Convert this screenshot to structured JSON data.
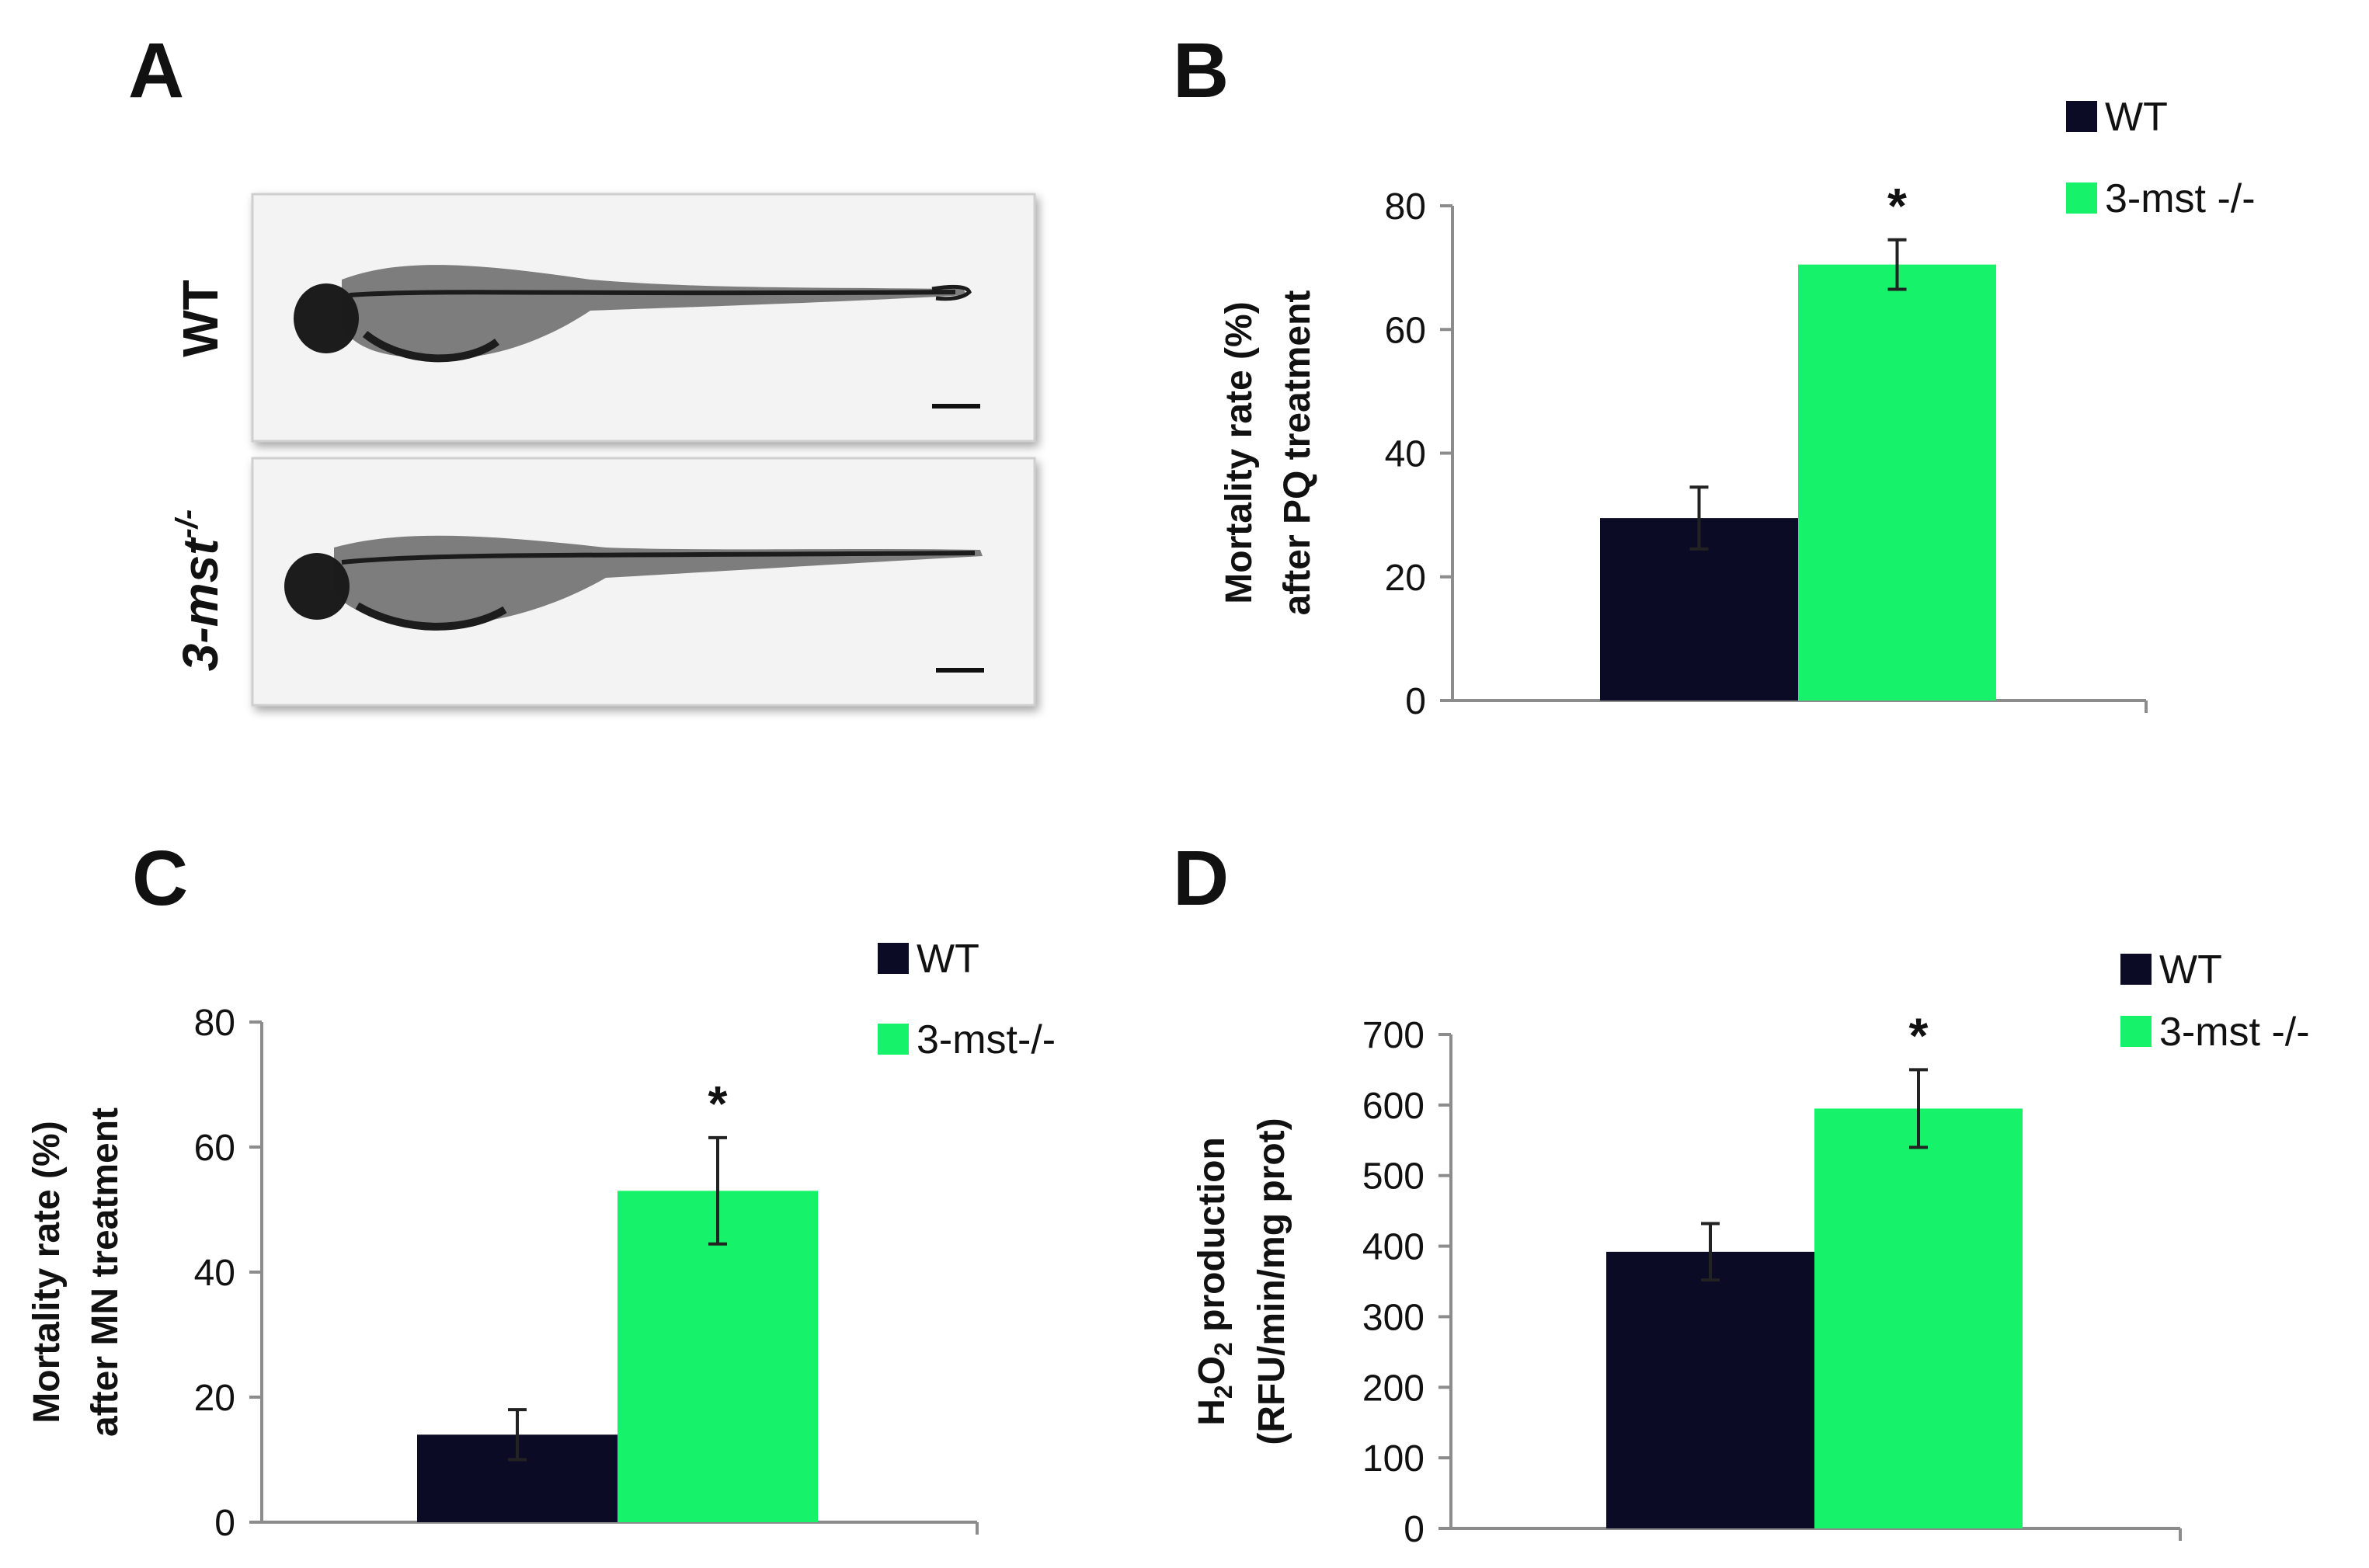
{
  "colors": {
    "wt": "#0b0b26",
    "mutant": "#16f26a"
  },
  "panel_a": {
    "letter": "A",
    "wt_label": "WT",
    "mutant_label_main": "3-mst",
    "mutant_label_sup": "-/-"
  },
  "chart_data": [
    {
      "panel": "B",
      "type": "bar",
      "categories": [
        "WT",
        "3-mst -/-"
      ],
      "values": [
        29.5,
        70.5
      ],
      "errors": [
        5,
        4
      ],
      "ylim": [
        0,
        80
      ],
      "yticks": [
        "0",
        "20",
        "40",
        "60",
        "80"
      ],
      "ylabel_lines": [
        "Mortality rate (%)",
        "after PQ treatment"
      ],
      "legend": [
        "WT",
        "3-mst -/-"
      ],
      "annotation": "*"
    },
    {
      "panel": "C",
      "type": "bar",
      "categories": [
        "WT",
        "3-mst-/-"
      ],
      "values": [
        14,
        53
      ],
      "errors": [
        4,
        8.5
      ],
      "ylim": [
        0,
        80
      ],
      "yticks": [
        "0",
        "20",
        "40",
        "60",
        "80"
      ],
      "ylabel_lines": [
        "Mortality rate (%)",
        "after MN treatment"
      ],
      "legend": [
        "WT",
        "3-mst-/-"
      ],
      "annotation": "*"
    },
    {
      "panel": "D",
      "type": "bar",
      "categories": [
        "WT",
        "3-mst -/-"
      ],
      "values": [
        392,
        595
      ],
      "errors": [
        40,
        55
      ],
      "ylim": [
        0,
        700
      ],
      "yticks": [
        "0",
        "100",
        "200",
        "300",
        "400",
        "500",
        "600",
        "700"
      ],
      "ylabel_parts": [
        "H",
        "2",
        "O",
        "2",
        " production"
      ],
      "ylabel_line2": "(RFU/min/mg prot)",
      "legend": [
        "WT",
        "3-mst -/-"
      ],
      "annotation": "*"
    }
  ]
}
